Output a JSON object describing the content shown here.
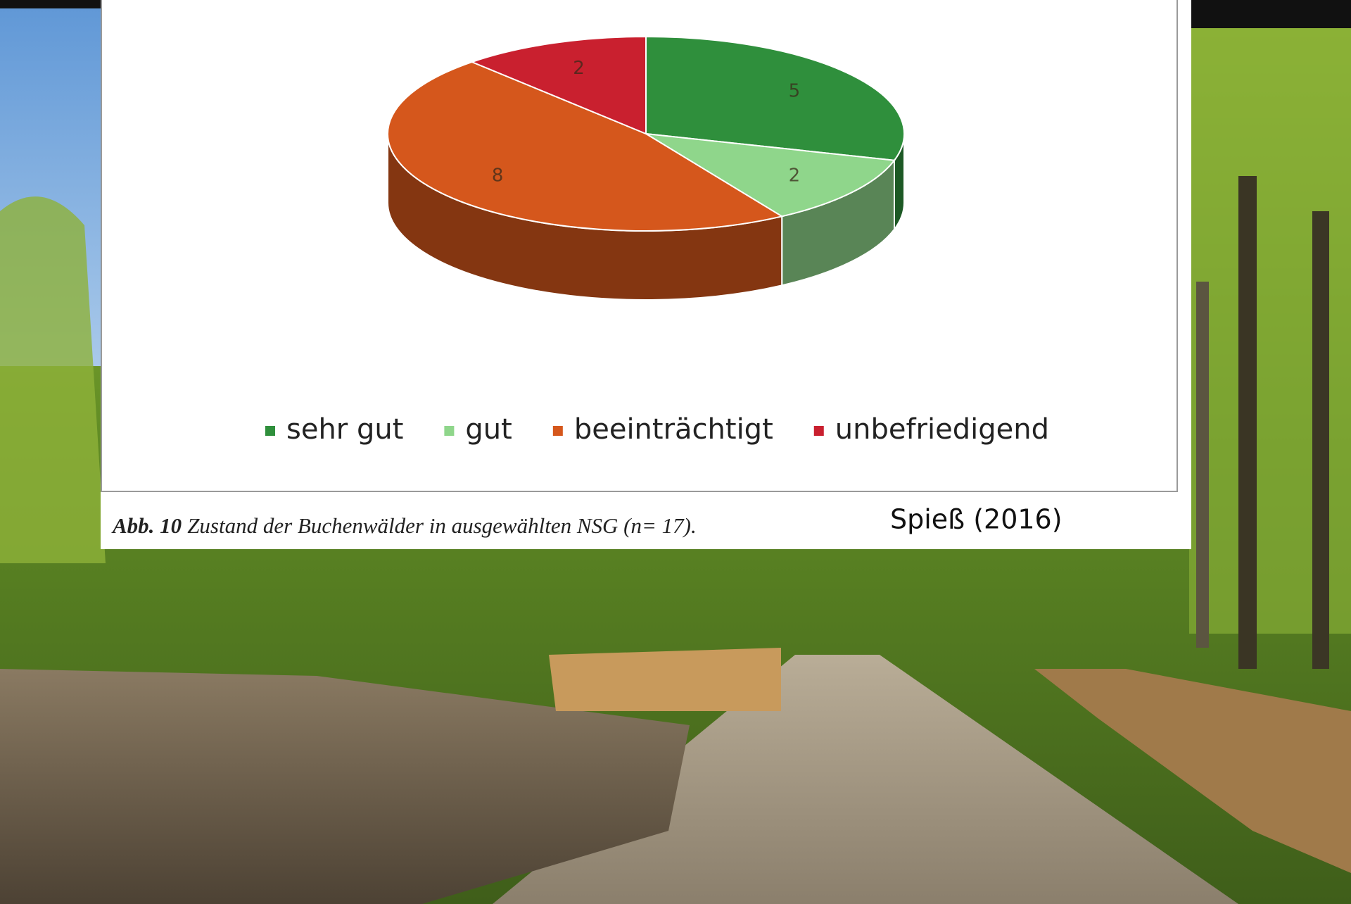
{
  "chart_data": {
    "type": "pie",
    "categories": [
      "sehr gut",
      "gut",
      "beeinträchtigt",
      "unbefriedigend"
    ],
    "values": [
      5,
      2,
      8,
      2
    ],
    "colors": [
      "#2f8f3c",
      "#8fd68b",
      "#d5571c",
      "#c9202f"
    ],
    "legend": "bottom",
    "caption_label": "Abb. 10",
    "caption": "Zustand der Buchenwälder in ausgewählten NSG (n= 17).",
    "source": "Spieß (2016)"
  }
}
